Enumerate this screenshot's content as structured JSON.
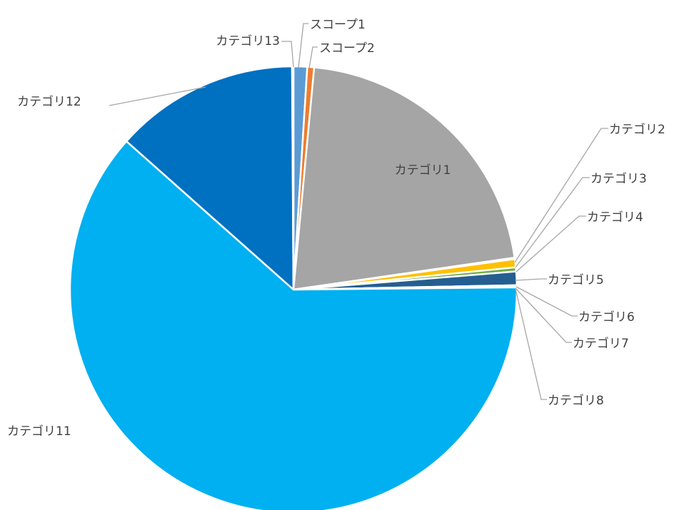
{
  "chart_data": {
    "type": "pie",
    "title": "",
    "start_angle_deg": 0,
    "direction": "clockwise",
    "slices": [
      {
        "label": "スコープ1",
        "value": 1.0,
        "color": "#5b9bd5"
      },
      {
        "label": "スコープ2",
        "value": 0.5,
        "color": "#ed7d31"
      },
      {
        "label": "カテゴリ1",
        "value": 21.5,
        "color": "#a5a5a5"
      },
      {
        "label": "カテゴリ2",
        "value": 0.1,
        "color": "#ffc000"
      },
      {
        "label": "カテゴリ3",
        "value": 0.6,
        "color": "#ffc000"
      },
      {
        "label": "カテゴリ4",
        "value": 0.3,
        "color": "#70ad47"
      },
      {
        "label": "カテゴリ5",
        "value": 1.0,
        "color": "#255e91"
      },
      {
        "label": "カテゴリ6",
        "value": 0.05,
        "color": "#9e480e"
      },
      {
        "label": "カテゴリ7",
        "value": 0.05,
        "color": "#636363"
      },
      {
        "label": "カテゴリ8",
        "value": 0.05,
        "color": "#997300"
      },
      {
        "label": "カテゴリ11",
        "value": 62.5,
        "color": "#00b0f0"
      },
      {
        "label": "カテゴリ12",
        "value": 13.5,
        "color": "#0070c0"
      },
      {
        "label": "カテゴリ13",
        "value": 0.1,
        "color": "#a9d18e"
      }
    ],
    "legend": "none",
    "data_labels": "category names"
  }
}
